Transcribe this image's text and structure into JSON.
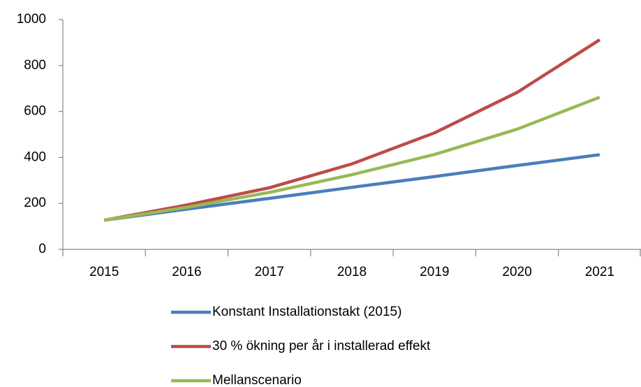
{
  "chart_data": {
    "type": "line",
    "categories": [
      "2015",
      "2016",
      "2017",
      "2018",
      "2019",
      "2020",
      "2021"
    ],
    "series": [
      {
        "name": "Konstant Installationstakt (2015)",
        "color": "#4a7ebb",
        "values": [
          127,
          175,
          222,
          270,
          317,
          365,
          412
        ]
      },
      {
        "name": "30 % ökning per år i installerad effekt",
        "color": "#be4b48",
        "values": [
          127,
          193,
          268,
          372,
          507,
          683,
          912
        ]
      },
      {
        "name": "Mellanscenario",
        "color": "#98b954",
        "values": [
          127,
          183,
          248,
          325,
          413,
          523,
          662
        ]
      }
    ],
    "ylim": [
      0,
      1000
    ],
    "yticks": [
      0,
      200,
      400,
      600,
      800,
      1000
    ],
    "grid": false,
    "legend": "bottom"
  }
}
